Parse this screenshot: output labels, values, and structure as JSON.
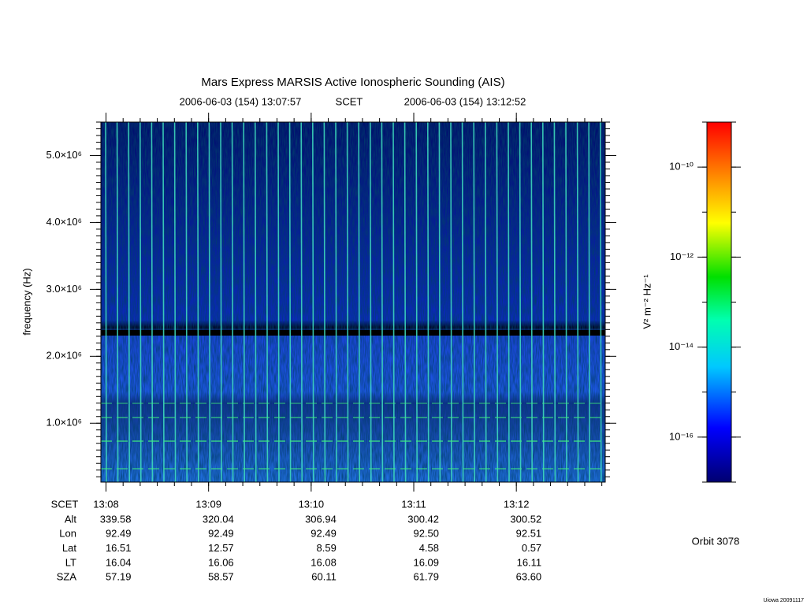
{
  "chart_data": {
    "type": "spectrogram",
    "title": "Mars Express MARSIS Active Ionospheric Sounding (AIS)",
    "time_system": "SCET",
    "xlim": [
      "2006-06-03 (154) 13:07:57",
      "2006-06-03 (154) 13:12:52"
    ],
    "xticks": [
      "13:08",
      "13:09",
      "13:10",
      "13:11",
      "13:12"
    ],
    "y_label": "frequency (Hz)",
    "ylim": [
      120000,
      5500000
    ],
    "yticks": [
      {
        "value": 1000000,
        "label": "1.0×10⁶"
      },
      {
        "value": 2000000,
        "label": "2.0×10⁶"
      },
      {
        "value": 3000000,
        "label": "3.0×10⁶"
      },
      {
        "value": 4000000,
        "label": "4.0×10⁶"
      },
      {
        "value": 5000000,
        "label": "5.0×10⁶"
      }
    ],
    "colorbar": {
      "label": "V² m⁻² Hz⁻¹",
      "scale": "log",
      "lim": [
        1e-17,
        1e-09
      ],
      "ticks": [
        {
          "value": 1e-16,
          "label": "10⁻¹⁶"
        },
        {
          "value": 1e-14,
          "label": "10⁻¹⁴"
        },
        {
          "value": 1e-12,
          "label": "10⁻¹²"
        },
        {
          "value": 1e-10,
          "label": "10⁻¹⁰"
        }
      ]
    },
    "ephemeris": [
      {
        "label": "Alt",
        "values": [
          "339.58",
          "320.04",
          "306.94",
          "300.42",
          "300.52"
        ]
      },
      {
        "label": "Lon",
        "values": [
          "92.49",
          "92.49",
          "92.49",
          "92.50",
          "92.51"
        ]
      },
      {
        "label": "Lat",
        "values": [
          "16.51",
          "12.57",
          "8.59",
          "4.58",
          "0.57"
        ]
      },
      {
        "label": "LT",
        "values": [
          "16.04",
          "16.06",
          "16.08",
          "16.09",
          "16.11"
        ]
      },
      {
        "label": "SZA",
        "values": [
          "57.19",
          "58.57",
          "60.11",
          "61.79",
          "63.60"
        ]
      }
    ],
    "orbit": "Orbit 3078",
    "credit": "Uiowa 20091117"
  }
}
